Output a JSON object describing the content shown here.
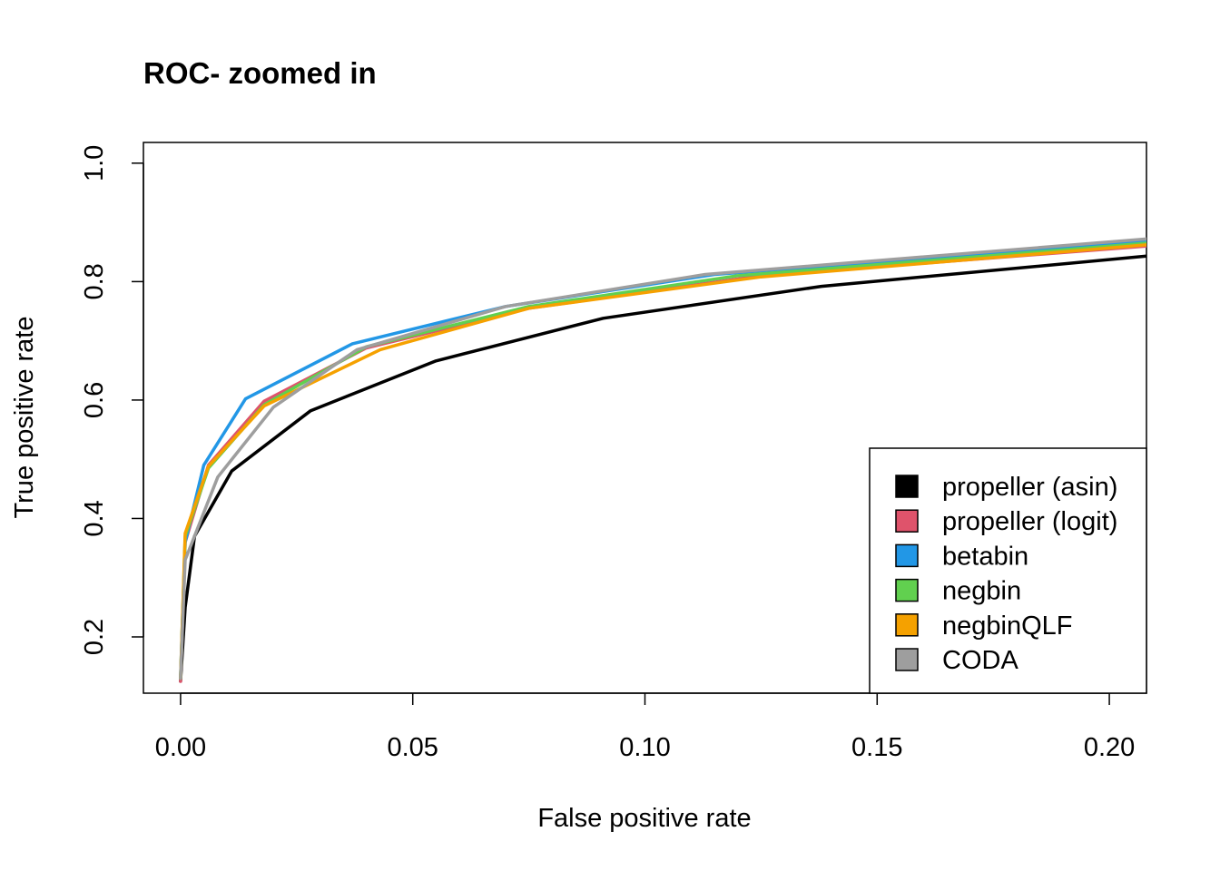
{
  "chart_data": {
    "type": "line",
    "title": "ROC- zoomed in",
    "xlabel": "False positive rate",
    "ylabel": "True positive rate",
    "xlim": [
      -0.008,
      0.208
    ],
    "ylim": [
      0.105,
      1.035
    ],
    "xticks": [
      0.0,
      0.05,
      0.1,
      0.15,
      0.2
    ],
    "xtick_labels": [
      "0.00",
      "0.05",
      "0.10",
      "0.15",
      "0.20"
    ],
    "yticks": [
      0.2,
      0.4,
      0.6,
      0.8,
      1.0
    ],
    "ytick_labels": [
      "0.2",
      "0.4",
      "0.6",
      "0.8",
      "1.0"
    ],
    "grid": false,
    "legend_position": "bottom-right",
    "series": [
      {
        "name": "propeller (asin)",
        "color": "#000000",
        "x": [
          0.0,
          0.001,
          0.003,
          0.011,
          0.028,
          0.055,
          0.091,
          0.138,
          0.208
        ],
        "y": [
          0.125,
          0.25,
          0.37,
          0.48,
          0.582,
          0.666,
          0.738,
          0.792,
          0.843
        ]
      },
      {
        "name": "propeller (logit)",
        "color": "#DF536B",
        "x": [
          0.0,
          0.001,
          0.006,
          0.018,
          0.04,
          0.075,
          0.125,
          0.208
        ],
        "y": [
          0.125,
          0.36,
          0.49,
          0.598,
          0.688,
          0.755,
          0.81,
          0.86
        ]
      },
      {
        "name": "betabin",
        "color": "#2297E6",
        "x": [
          0.0,
          0.001,
          0.005,
          0.014,
          0.037,
          0.07,
          0.115,
          0.208
        ],
        "y": [
          0.13,
          0.36,
          0.49,
          0.602,
          0.695,
          0.758,
          0.812,
          0.868
        ]
      },
      {
        "name": "negbin",
        "color": "#61D04F",
        "x": [
          0.0,
          0.001,
          0.006,
          0.018,
          0.04,
          0.075,
          0.12,
          0.208
        ],
        "y": [
          0.13,
          0.37,
          0.485,
          0.592,
          0.69,
          0.758,
          0.81,
          0.865
        ]
      },
      {
        "name": "negbinQLF",
        "color": "#F5A100",
        "x": [
          0.0,
          0.001,
          0.006,
          0.018,
          0.043,
          0.075,
          0.125,
          0.208
        ],
        "y": [
          0.13,
          0.375,
          0.488,
          0.59,
          0.685,
          0.755,
          0.808,
          0.862
        ]
      },
      {
        "name": "CODA",
        "color": "#9E9E9E",
        "x": [
          0.0,
          0.001,
          0.008,
          0.02,
          0.038,
          0.07,
          0.113,
          0.208
        ],
        "y": [
          0.13,
          0.33,
          0.47,
          0.588,
          0.685,
          0.758,
          0.812,
          0.872
        ]
      }
    ]
  }
}
